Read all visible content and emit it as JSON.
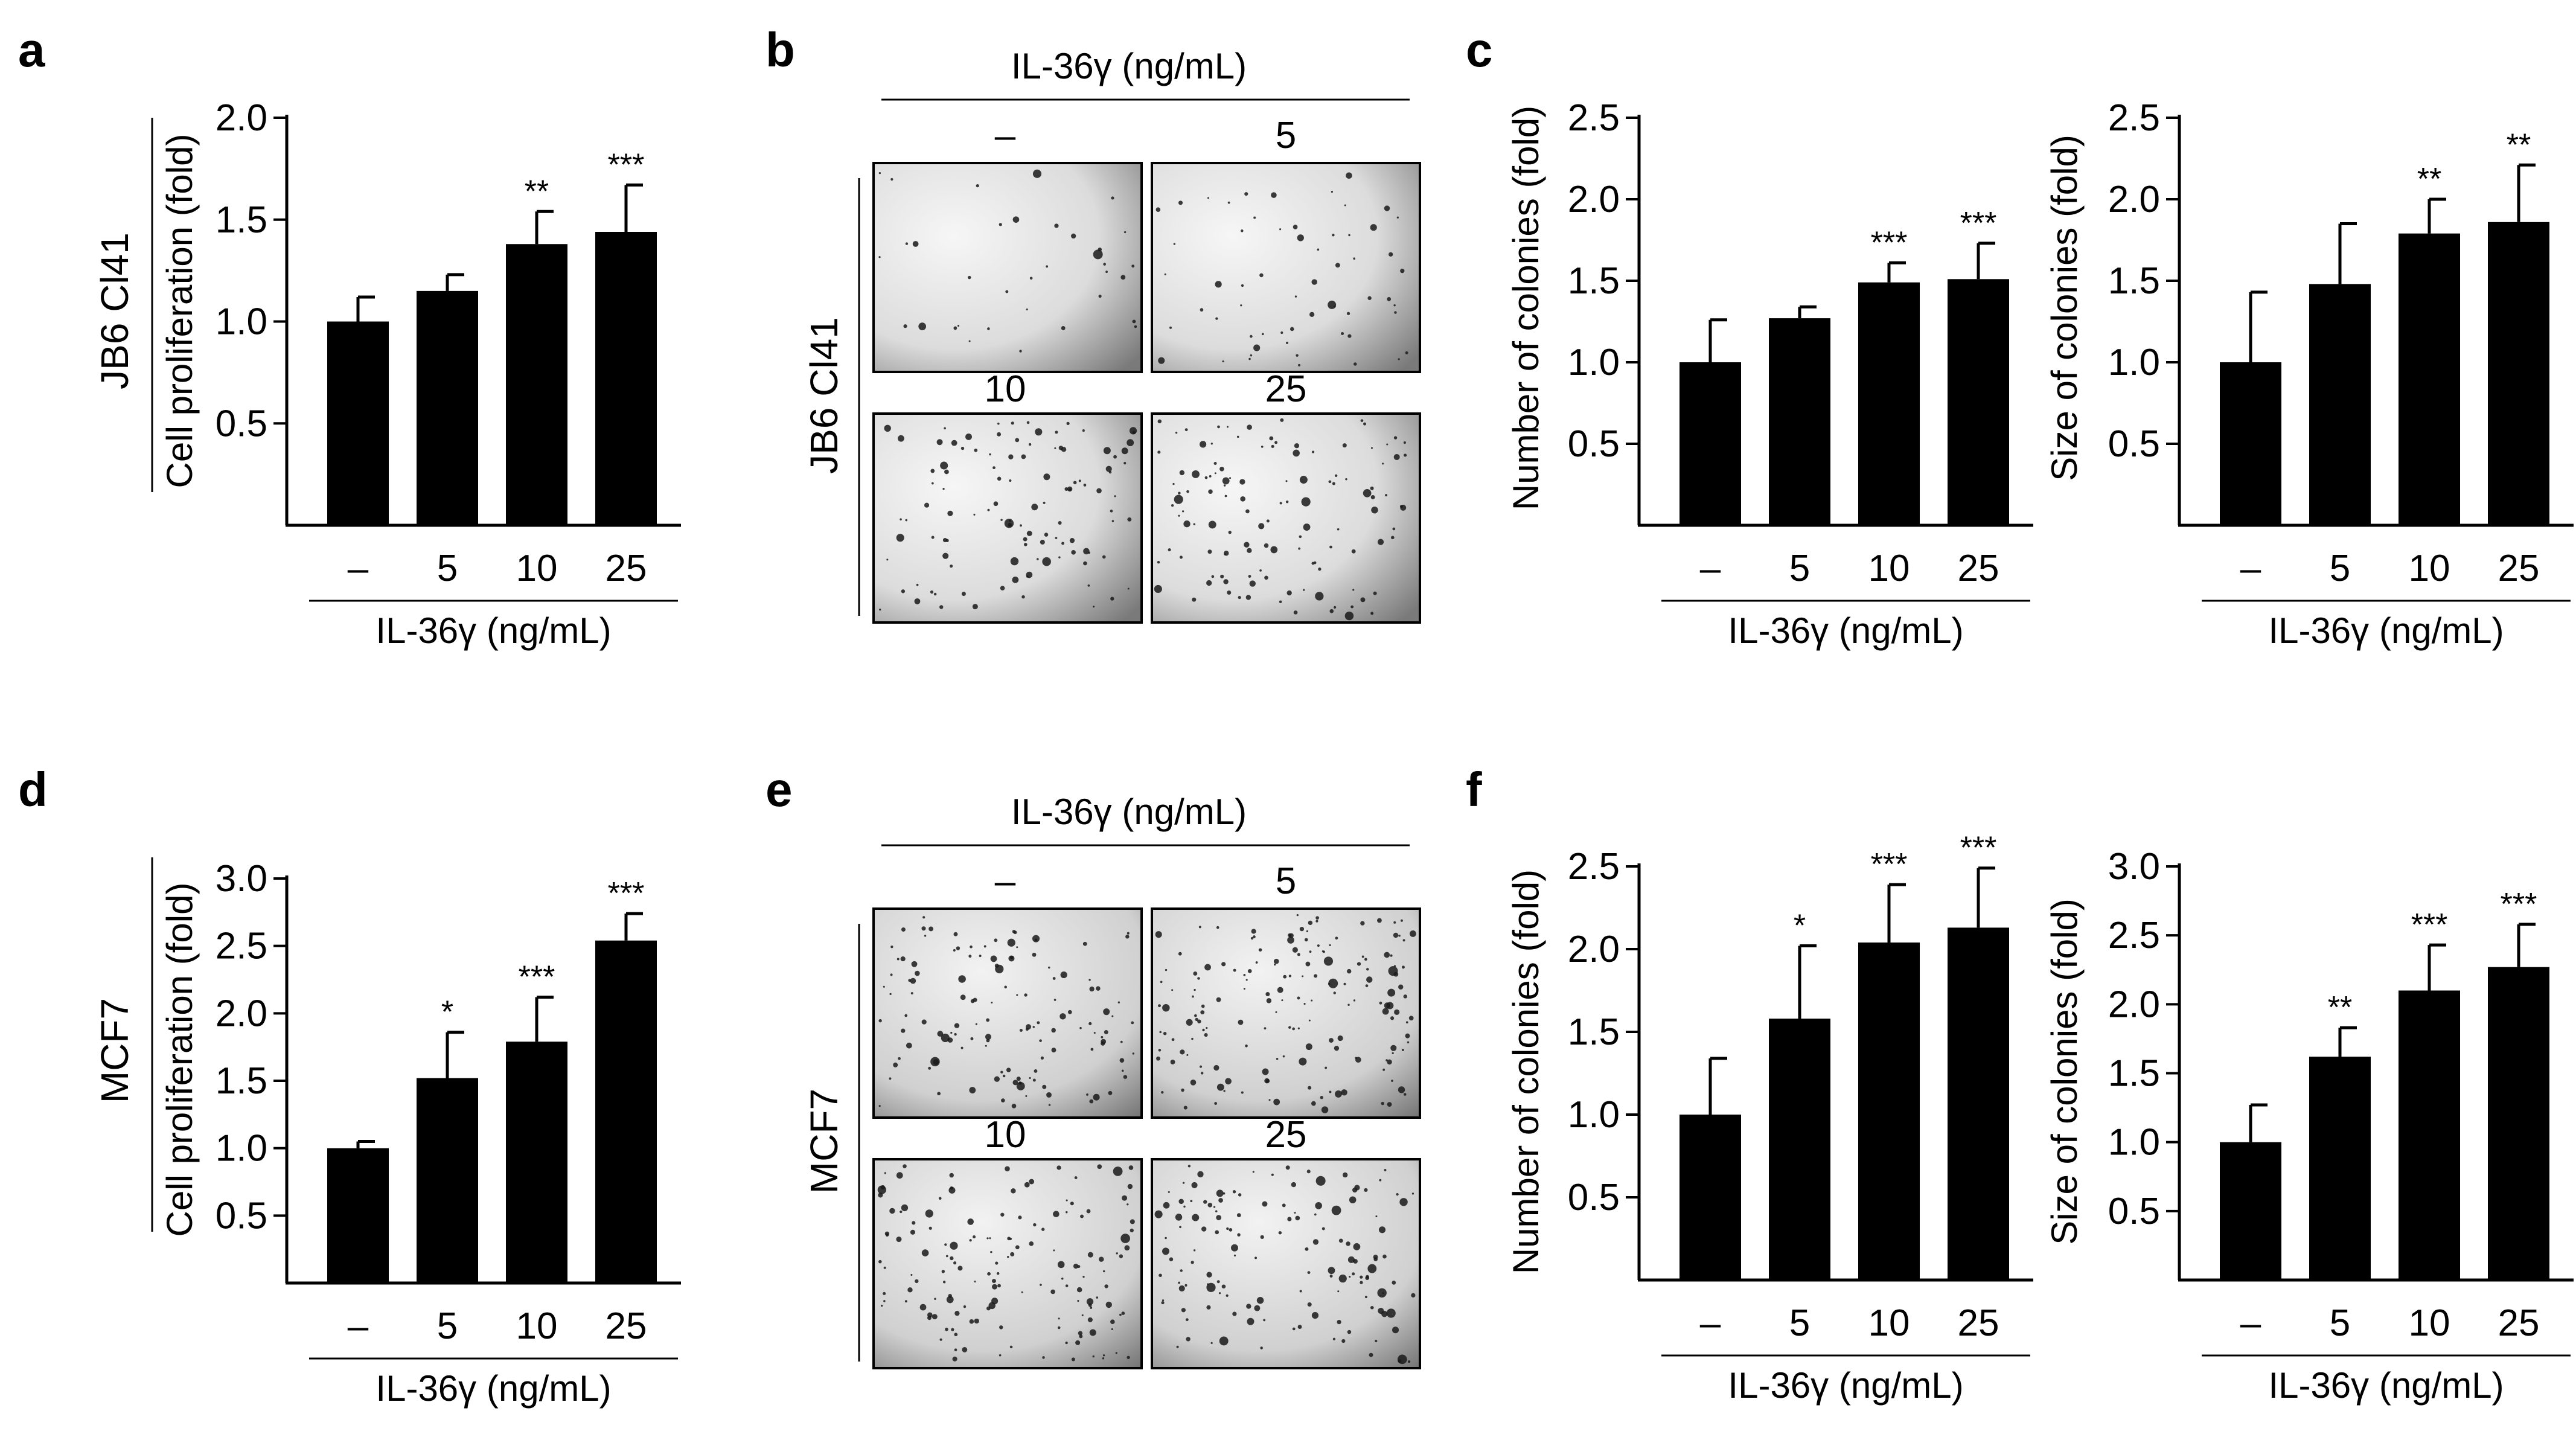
{
  "panels": {
    "a": {
      "letter": "a"
    },
    "b": {
      "letter": "b",
      "treatment": "IL-36γ (ng/mL)",
      "cell_line": "JB6 Cl41",
      "dose_labels": [
        "–",
        "5",
        "10",
        "25"
      ],
      "image_names": [
        "colony-image-control",
        "colony-image-5",
        "colony-image-10",
        "colony-image-25"
      ]
    },
    "c": {
      "letter": "c"
    },
    "d": {
      "letter": "d"
    },
    "e": {
      "letter": "e",
      "treatment": "IL-36γ (ng/mL)",
      "cell_line": "MCF7",
      "dose_labels": [
        "–",
        "5",
        "10",
        "25"
      ],
      "image_names": [
        "colony-image-control",
        "colony-image-5",
        "colony-image-10",
        "colony-image-25"
      ]
    },
    "f": {
      "letter": "f"
    }
  },
  "chart_data": [
    {
      "id": "a",
      "type": "bar",
      "cell_line": "JB6 Cl41",
      "categories": [
        "–",
        "5",
        "10",
        "25"
      ],
      "values": [
        1.0,
        1.15,
        1.38,
        1.44
      ],
      "errors": [
        0.12,
        0.08,
        0.16,
        0.23
      ],
      "significance": [
        "",
        "",
        "**",
        "***"
      ],
      "ylabel": "Cell proliferation (fold)",
      "xlabel": "IL-36γ (ng/mL)",
      "ylim": [
        0,
        2.0
      ],
      "yticks": [
        "0.5",
        "1.0",
        "1.5",
        "2.0"
      ],
      "color": "#000000"
    },
    {
      "id": "c1",
      "type": "bar",
      "categories": [
        "–",
        "5",
        "10",
        "25"
      ],
      "values": [
        1.0,
        1.27,
        1.49,
        1.51
      ],
      "errors": [
        0.26,
        0.07,
        0.12,
        0.22
      ],
      "significance": [
        "",
        "",
        "***",
        "***"
      ],
      "ylabel": "Number of colonies (fold)",
      "xlabel": "IL-36γ (ng/mL)",
      "ylim": [
        0,
        2.5
      ],
      "yticks": [
        "0.5",
        "1.0",
        "1.5",
        "2.0",
        "2.5"
      ],
      "color": "#000000"
    },
    {
      "id": "c2",
      "type": "bar",
      "categories": [
        "–",
        "5",
        "10",
        "25"
      ],
      "values": [
        1.0,
        1.48,
        1.79,
        1.86
      ],
      "errors": [
        0.43,
        0.37,
        0.21,
        0.35
      ],
      "significance": [
        "",
        "",
        "**",
        "**"
      ],
      "ylabel": "Size of colonies (fold)",
      "xlabel": "IL-36γ (ng/mL)",
      "ylim": [
        0,
        2.5
      ],
      "yticks": [
        "0.5",
        "1.0",
        "1.5",
        "2.0",
        "2.5"
      ],
      "color": "#000000"
    },
    {
      "id": "d",
      "type": "bar",
      "cell_line": "MCF7",
      "categories": [
        "–",
        "5",
        "10",
        "25"
      ],
      "values": [
        1.0,
        1.52,
        1.79,
        2.54
      ],
      "errors": [
        0.05,
        0.34,
        0.33,
        0.2
      ],
      "significance": [
        "",
        "*",
        "***",
        "***"
      ],
      "ylabel": "Cell proliferation (fold)",
      "xlabel": "IL-36γ (ng/mL)",
      "ylim": [
        0,
        3.0
      ],
      "yticks": [
        "0.5",
        "1.0",
        "1.5",
        "2.0",
        "2.5",
        "3.0"
      ],
      "color": "#000000"
    },
    {
      "id": "f1",
      "type": "bar",
      "categories": [
        "–",
        "5",
        "10",
        "25"
      ],
      "values": [
        1.0,
        1.58,
        2.04,
        2.13
      ],
      "errors": [
        0.34,
        0.44,
        0.35,
        0.36
      ],
      "significance": [
        "",
        "*",
        "***",
        "***"
      ],
      "ylabel": "Number of colonies (fold)",
      "xlabel": "IL-36γ (ng/mL)",
      "ylim": [
        0,
        2.5
      ],
      "yticks": [
        "0.5",
        "1.0",
        "1.5",
        "2.0",
        "2.5"
      ],
      "color": "#000000"
    },
    {
      "id": "f2",
      "type": "bar",
      "categories": [
        "–",
        "5",
        "10",
        "25"
      ],
      "values": [
        1.0,
        1.62,
        2.1,
        2.27
      ],
      "errors": [
        0.27,
        0.21,
        0.33,
        0.31
      ],
      "significance": [
        "",
        "**",
        "***",
        "***"
      ],
      "ylabel": "Size of colonies (fold)",
      "xlabel": "IL-36γ (ng/mL)",
      "ylim": [
        0,
        3.0
      ],
      "yticks": [
        "0.5",
        "1.0",
        "1.5",
        "2.0",
        "2.5",
        "3.0"
      ],
      "color": "#000000"
    }
  ]
}
